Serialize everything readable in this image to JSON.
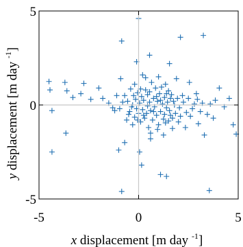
{
  "chart_data": {
    "type": "scatter",
    "xlabel_var": "x",
    "ylabel_var": "y",
    "label_text": " displacement [m  day ",
    "label_exp": "-1",
    "label_close": "]",
    "xlim": [
      -5,
      5
    ],
    "ylim": [
      -5,
      5
    ],
    "x_ticks": [
      -5,
      0,
      5
    ],
    "y_ticks": [
      5,
      0,
      -5
    ],
    "grid": false,
    "crosshair_at_zero": true,
    "marker": "plus",
    "color": "#1f6fb2",
    "points": [
      [
        0.0,
        4.6
      ],
      [
        -0.85,
        3.4
      ],
      [
        2.1,
        3.6
      ],
      [
        3.25,
        3.7
      ],
      [
        0.55,
        2.65
      ],
      [
        1.55,
        2.2
      ],
      [
        -4.5,
        1.25
      ],
      [
        -4.45,
        0.8
      ],
      [
        -4.35,
        -0.3
      ],
      [
        -4.35,
        -2.5
      ],
      [
        -3.7,
        1.2
      ],
      [
        -3.6,
        0.75
      ],
      [
        -3.3,
        0.4
      ],
      [
        -3.65,
        -1.5
      ],
      [
        -2.75,
        1.15
      ],
      [
        -2.9,
        0.6
      ],
      [
        -2.4,
        0.3
      ],
      [
        -2.0,
        0.9
      ],
      [
        -1.8,
        0.35
      ],
      [
        -1.5,
        0.1
      ],
      [
        -1.2,
        -0.3
      ],
      [
        -0.9,
        1.4
      ],
      [
        -0.7,
        0.5
      ],
      [
        -0.5,
        -0.5
      ],
      [
        -1.0,
        -2.4
      ],
      [
        -0.7,
        -2.0
      ],
      [
        -0.35,
        -0.1
      ],
      [
        -0.1,
        2.3
      ],
      [
        0.2,
        1.6
      ],
      [
        0.05,
        -2.5
      ],
      [
        0.15,
        -3.2
      ],
      [
        0.6,
        -1.8
      ],
      [
        1.1,
        -3.7
      ],
      [
        1.4,
        -3.8
      ],
      [
        -0.85,
        -4.6
      ],
      [
        3.55,
        -4.55
      ],
      [
        3.75,
        -0.7
      ],
      [
        3.85,
        0.25
      ],
      [
        4.05,
        0.9
      ],
      [
        4.3,
        -0.1
      ],
      [
        4.55,
        0.35
      ],
      [
        4.75,
        -1.05
      ],
      [
        4.9,
        -1.55
      ],
      [
        3.3,
        -1.6
      ],
      [
        3.0,
        -1.0
      ],
      [
        2.8,
        0.05
      ],
      [
        2.9,
        0.6
      ],
      [
        2.55,
        1.2
      ],
      [
        2.4,
        -0.4
      ],
      [
        2.2,
        0.5
      ],
      [
        2.0,
        -0.9
      ],
      [
        1.9,
        1.4
      ],
      [
        1.75,
        0.2
      ],
      [
        1.6,
        -0.55
      ],
      [
        1.5,
        0.75
      ],
      [
        1.4,
        -0.15
      ],
      [
        1.3,
        0.4
      ],
      [
        1.25,
        -0.75
      ],
      [
        1.2,
        0.05
      ],
      [
        1.1,
        -0.35
      ],
      [
        1.05,
        0.6
      ],
      [
        1.0,
        -1.05
      ],
      [
        0.95,
        0.2
      ],
      [
        0.9,
        -0.55
      ],
      [
        0.85,
        0.9
      ],
      [
        0.8,
        -0.1
      ],
      [
        0.75,
        0.35
      ],
      [
        0.7,
        -0.8
      ],
      [
        0.65,
        1.2
      ],
      [
        0.6,
        -0.3
      ],
      [
        0.55,
        0.15
      ],
      [
        0.5,
        -1.2
      ],
      [
        0.45,
        0.55
      ],
      [
        0.4,
        -0.45
      ],
      [
        0.35,
        0.8
      ],
      [
        0.3,
        -0.7
      ],
      [
        0.25,
        0.25
      ],
      [
        0.2,
        -0.25
      ],
      [
        0.15,
        0.45
      ],
      [
        0.1,
        -0.9
      ],
      [
        0.05,
        0.1
      ],
      [
        0.0,
        -0.45
      ],
      [
        -0.05,
        0.65
      ],
      [
        -0.1,
        -0.2
      ],
      [
        -0.15,
        0.3
      ],
      [
        -0.2,
        -0.65
      ],
      [
        -0.25,
        0.5
      ],
      [
        -0.3,
        0.0
      ],
      [
        -0.4,
        0.85
      ],
      [
        -0.45,
        -0.35
      ],
      [
        -0.55,
        0.2
      ],
      [
        -0.6,
        -0.8
      ],
      [
        -0.8,
        0.15
      ],
      [
        -0.95,
        -0.2
      ],
      [
        -1.1,
        0.5
      ],
      [
        -1.3,
        -0.15
      ],
      [
        1.35,
        -0.95
      ],
      [
        1.45,
        0.15
      ],
      [
        1.55,
        -0.3
      ],
      [
        1.65,
        0.55
      ],
      [
        1.7,
        -0.7
      ],
      [
        1.8,
        0.0
      ],
      [
        1.85,
        -0.45
      ],
      [
        1.95,
        0.35
      ],
      [
        2.05,
        -0.15
      ],
      [
        2.1,
        -0.6
      ],
      [
        2.25,
        0.15
      ],
      [
        2.35,
        -1.2
      ],
      [
        2.5,
        0.35
      ],
      [
        2.6,
        -0.6
      ],
      [
        2.7,
        -0.2
      ],
      [
        2.95,
        0.3
      ],
      [
        3.1,
        -0.35
      ],
      [
        3.2,
        0.1
      ],
      [
        3.45,
        -0.5
      ],
      [
        3.6,
        0.05
      ],
      [
        1.15,
        0.95
      ],
      [
        0.95,
        -1.3
      ],
      [
        1.35,
        1.1
      ],
      [
        1.7,
        -1.25
      ],
      [
        0.35,
        1.45
      ],
      [
        0.6,
        -1.5
      ],
      [
        -0.2,
        1.1
      ],
      [
        -0.3,
        -1.05
      ],
      [
        1.0,
        1.5
      ],
      [
        1.25,
        -1.6
      ],
      [
        0.45,
        -0.05
      ],
      [
        0.75,
        -0.35
      ],
      [
        0.9,
        0.45
      ],
      [
        1.1,
        0.25
      ],
      [
        1.3,
        -0.5
      ],
      [
        1.5,
        -0.85
      ],
      [
        1.6,
        0.35
      ],
      [
        1.4,
        0.6
      ],
      [
        0.55,
        0.7
      ],
      [
        0.25,
        -0.55
      ],
      [
        -0.05,
        -0.8
      ],
      [
        0.1,
        0.85
      ]
    ]
  }
}
